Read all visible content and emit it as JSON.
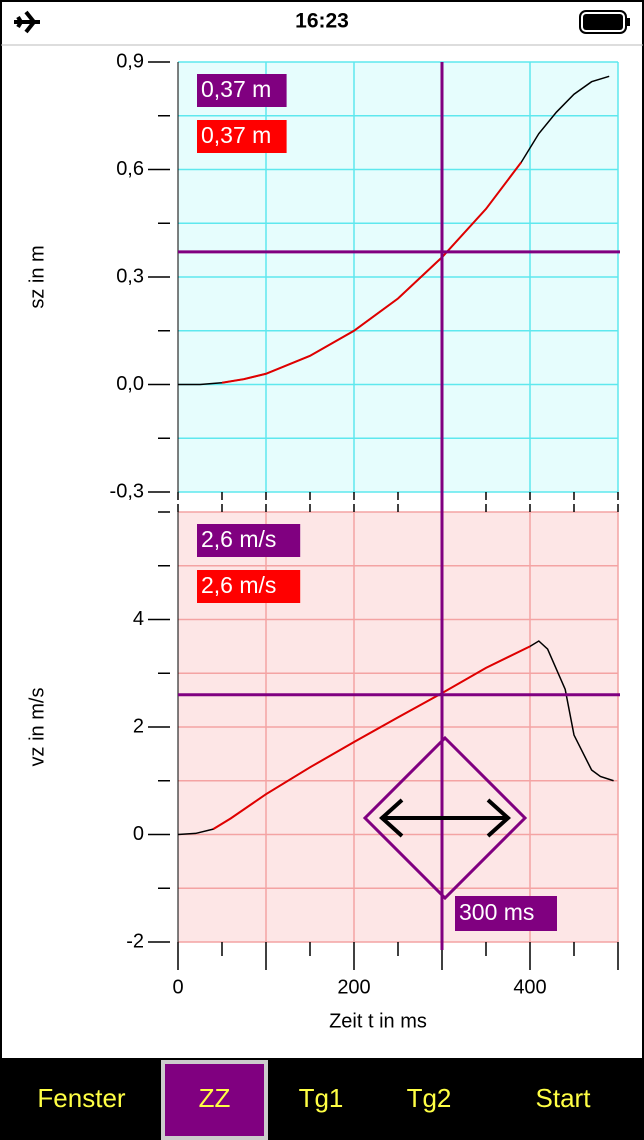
{
  "status_bar": {
    "time": "16:23"
  },
  "chart_data": [
    {
      "type": "line",
      "ylabel": "sz in m",
      "xlim": [
        0,
        500
      ],
      "ylim": [
        -0.3,
        0.9
      ],
      "yticks": [
        {
          "value": -0.3,
          "label": "-0,3"
        },
        {
          "value": 0,
          "label": "0,0"
        },
        {
          "value": 0.3,
          "label": "0,3"
        },
        {
          "value": 0.6,
          "label": "0,6"
        },
        {
          "value": 0.9,
          "label": "0,9"
        }
      ],
      "yminor_ticks": [
        -0.15,
        0.15,
        0.45,
        0.75
      ],
      "xminor_ticks": [
        0,
        50,
        100,
        150,
        200,
        250,
        300,
        350,
        400,
        450,
        500
      ],
      "grid": true,
      "background": "#e6fdfd",
      "grid_color": "#5ee8ee",
      "x": [
        0,
        25,
        50,
        75,
        100,
        150,
        200,
        250,
        300,
        350,
        390,
        410,
        430,
        450,
        470,
        490
      ],
      "series": [
        {
          "color": "#000000",
          "values": [
            0,
            0,
            0.005,
            0.015,
            0.03,
            0.08,
            0.15,
            0.24,
            0.355,
            0.49,
            0.62,
            0.7,
            0.76,
            0.81,
            0.845,
            0.86
          ]
        },
        {
          "color": "#e00000",
          "values": [
            null,
            null,
            0.005,
            0.015,
            0.03,
            0.08,
            0.15,
            0.24,
            0.355,
            0.49,
            0.62,
            null,
            null,
            null,
            null,
            null
          ]
        }
      ],
      "cursor": {
        "value": 0.37,
        "label": "0,37 m",
        "color": "#800080"
      },
      "fit_cursor": {
        "value": 0.37,
        "label": "0,37 m",
        "color": "#ff0000"
      }
    },
    {
      "type": "line",
      "ylabel": "vz in m/s",
      "xlabel": "Zeit t in ms",
      "xlim": [
        0,
        500
      ],
      "ylim": [
        -2,
        6
      ],
      "yticks": [
        -2,
        0,
        2,
        4
      ],
      "yminor_ticks": [
        -1,
        1,
        3,
        5,
        6
      ],
      "xticks": [
        0,
        200,
        400
      ],
      "xminor_ticks": [
        50,
        100,
        150,
        250,
        300,
        350,
        450,
        500
      ],
      "grid": true,
      "background": "#fde6e6",
      "grid_color": "#f4a3a3",
      "x": [
        0,
        20,
        40,
        60,
        100,
        150,
        200,
        250,
        300,
        350,
        400,
        410,
        420,
        440,
        450,
        470,
        480,
        495
      ],
      "series": [
        {
          "color": "#000000",
          "values": [
            0,
            0.02,
            0.1,
            0.3,
            0.75,
            1.25,
            1.72,
            2.18,
            2.63,
            3.1,
            3.5,
            3.6,
            3.45,
            2.7,
            1.85,
            1.2,
            1.08,
            1.0
          ]
        },
        {
          "color": "#e00000",
          "values": [
            null,
            null,
            0.1,
            0.3,
            0.75,
            1.25,
            1.72,
            2.18,
            2.63,
            3.1,
            3.5,
            null,
            null,
            null,
            null,
            null,
            null,
            null
          ]
        }
      ],
      "cursor": {
        "value": 2.6,
        "label": "2,6 m/s",
        "color": "#800080"
      },
      "fit_cursor": {
        "value": 2.6,
        "label": "2,6 m/s",
        "color": "#ff0000"
      }
    }
  ],
  "cursor_x": {
    "value": 300,
    "label": "300 ms",
    "color": "#800080"
  },
  "buttons": [
    "Fenster",
    "ZZ",
    "Tg1",
    "Tg2",
    "Start"
  ]
}
